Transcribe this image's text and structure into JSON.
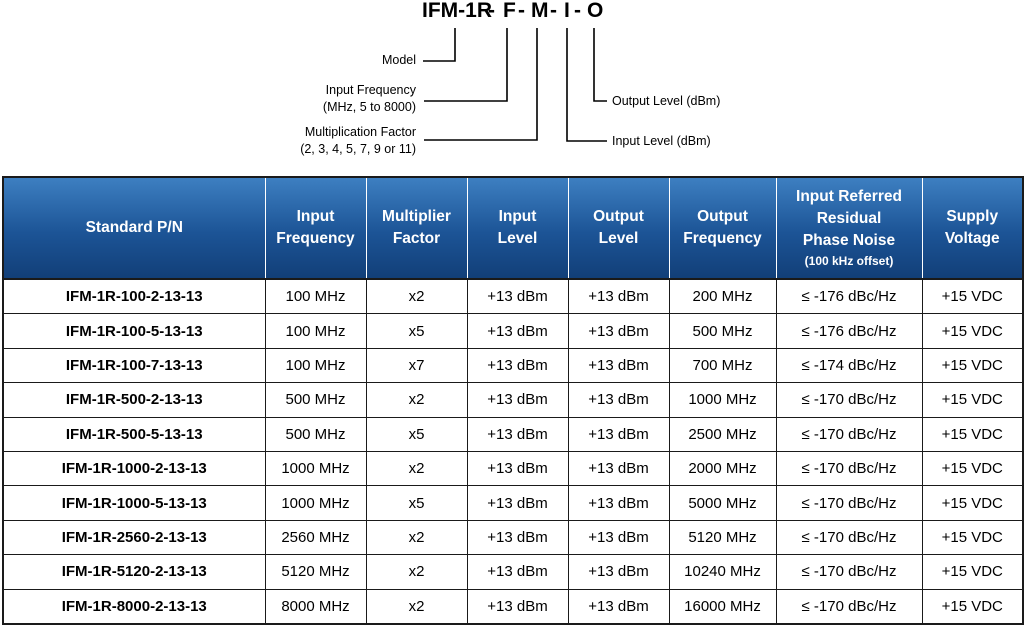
{
  "diagram": {
    "model_prefix": "IFM-1R",
    "sep": "-",
    "f": "F",
    "m": "M",
    "i": "I",
    "o": "O",
    "labels": {
      "model": "Model",
      "input_frequency": "Input Frequency",
      "input_frequency_range": "(MHz, 5 to 8000)",
      "multiplication_factor": "Multiplication Factor",
      "multiplication_values": "(2, 3, 4, 5, 7, 9 or 11)",
      "output_level": "Output Level (dBm)",
      "input_level": "Input Level (dBm)"
    }
  },
  "table": {
    "headers": {
      "pn": "Standard P/N",
      "input_freq_1": "Input",
      "input_freq_2": "Frequency",
      "mult_1": "Multiplier",
      "mult_2": "Factor",
      "in_level_1": "Input",
      "in_level_2": "Level",
      "out_level_1": "Output",
      "out_level_2": "Level",
      "out_freq_1": "Output",
      "out_freq_2": "Frequency",
      "noise_1": "Input Referred",
      "noise_2": "Residual",
      "noise_3": "Phase Noise",
      "noise_4": "(100 kHz offset)",
      "supply_1": "Supply",
      "supply_2": "Voltage"
    },
    "rows": [
      [
        "IFM-1R-100-2-13-13",
        "100 MHz",
        "x2",
        "+13 dBm",
        "+13 dBm",
        "200 MHz",
        "≤ -176 dBc/Hz",
        "+15 VDC"
      ],
      [
        "IFM-1R-100-5-13-13",
        "100 MHz",
        "x5",
        "+13 dBm",
        "+13 dBm",
        "500 MHz",
        "≤ -176 dBc/Hz",
        "+15 VDC"
      ],
      [
        "IFM-1R-100-7-13-13",
        "100 MHz",
        "x7",
        "+13 dBm",
        "+13 dBm",
        "700 MHz",
        "≤ -174 dBc/Hz",
        "+15 VDC"
      ],
      [
        "IFM-1R-500-2-13-13",
        "500 MHz",
        "x2",
        "+13 dBm",
        "+13 dBm",
        "1000 MHz",
        "≤ -170 dBc/Hz",
        "+15 VDC"
      ],
      [
        "IFM-1R-500-5-13-13",
        "500 MHz",
        "x5",
        "+13 dBm",
        "+13 dBm",
        "2500 MHz",
        "≤ -170 dBc/Hz",
        "+15 VDC"
      ],
      [
        "IFM-1R-1000-2-13-13",
        "1000 MHz",
        "x2",
        "+13 dBm",
        "+13 dBm",
        "2000 MHz",
        "≤ -170 dBc/Hz",
        "+15 VDC"
      ],
      [
        "IFM-1R-1000-5-13-13",
        "1000 MHz",
        "x5",
        "+13 dBm",
        "+13 dBm",
        "5000 MHz",
        "≤ -170 dBc/Hz",
        "+15 VDC"
      ],
      [
        "IFM-1R-2560-2-13-13",
        "2560 MHz",
        "x2",
        "+13 dBm",
        "+13 dBm",
        "5120 MHz",
        "≤ -170 dBc/Hz",
        "+15 VDC"
      ],
      [
        "IFM-1R-5120-2-13-13",
        "5120 MHz",
        "x2",
        "+13 dBm",
        "+13 dBm",
        "10240 MHz",
        "≤ -170 dBc/Hz",
        "+15 VDC"
      ],
      [
        "IFM-1R-8000-2-13-13",
        "8000 MHz",
        "x2",
        "+13 dBm",
        "+13 dBm",
        "16000 MHz",
        "≤ -170 dBc/Hz",
        "+15 VDC"
      ]
    ],
    "header_color": "#1c5496",
    "border_color": "#1a1a1a"
  }
}
